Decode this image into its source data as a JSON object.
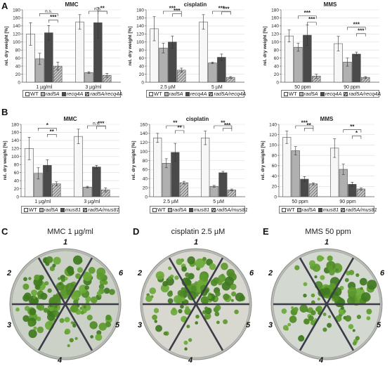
{
  "panel_letters": {
    "a": "A",
    "b": "B",
    "c": "C",
    "d": "D",
    "e": "E"
  },
  "legend_row1": {
    "wt": "WT",
    "rad5a": "rad5A",
    "mut": "recq4A",
    "dbl": "rad5A/recq4A"
  },
  "legend_row2": {
    "wt": "WT",
    "rad5a": "rad5A",
    "mut": "mus81",
    "dbl": "rad5A/mus81"
  },
  "photos": {
    "c_title": "MMC 1 µg/ml",
    "d_title": "cisplatin 2.5 µM",
    "e_title": "MMS 50 ppm",
    "labels": [
      "1",
      "2",
      "3",
      "4",
      "5",
      "6"
    ]
  },
  "colors": {
    "wt": "#f7f7f7",
    "rad5a": "#b0b0b0",
    "mut": "#4a4a4a",
    "dbl": "hatched",
    "plate_bg": "#d6d6d0",
    "seedling": "#5d9a2e"
  },
  "chart_data": [
    {
      "id": "A-MMC",
      "type": "bar",
      "title": "MMC",
      "ylabel": "rel. dry weight [%]",
      "ylim": [
        0,
        180
      ],
      "yticks": [
        0,
        20,
        40,
        60,
        80,
        100,
        120,
        140,
        160,
        180
      ],
      "categories": [
        "1 µg/ml",
        "3 µg/ml"
      ],
      "series": [
        {
          "name": "WT",
          "values": [
            120,
            150
          ],
          "err": [
            28,
            18
          ]
        },
        {
          "name": "rad5A",
          "values": [
            58,
            24
          ],
          "err": [
            14,
            2
          ]
        },
        {
          "name": "recq4A",
          "values": [
            123,
            148
          ],
          "err": [
            18,
            38
          ]
        },
        {
          "name": "rad5A/recq4A",
          "values": [
            40,
            17
          ],
          "err": [
            10,
            5
          ]
        }
      ],
      "annotations": [
        {
          "g": 0,
          "from": 1,
          "to": 3,
          "text": "n.s."
        },
        {
          "g": 0,
          "from": 2,
          "to": 3,
          "text": "***"
        },
        {
          "g": 1,
          "from": 1,
          "to": 3,
          "text": "n.s."
        },
        {
          "g": 1,
          "from": 2,
          "to": 3,
          "text": "**"
        }
      ]
    },
    {
      "id": "A-cisplatin",
      "type": "bar",
      "title": "cisplatin",
      "ylabel": "rel. dry weight [%]",
      "ylim": [
        0,
        180
      ],
      "yticks": [
        0,
        20,
        40,
        60,
        80,
        100,
        120,
        140,
        160,
        180
      ],
      "categories": [
        "2.5 µM",
        "5 µM"
      ],
      "series": [
        {
          "name": "WT",
          "values": [
            133,
            150
          ],
          "err": [
            30,
            18
          ]
        },
        {
          "name": "rad5A",
          "values": [
            85,
            48
          ],
          "err": [
            12,
            2
          ]
        },
        {
          "name": "recq4A",
          "values": [
            100,
            62
          ],
          "err": [
            15,
            8
          ]
        },
        {
          "name": "rad5A/recq4A",
          "values": [
            30,
            12
          ],
          "err": [
            5,
            2
          ]
        }
      ],
      "annotations": [
        {
          "g": 0,
          "from": 1,
          "to": 3,
          "text": "***"
        },
        {
          "g": 0,
          "from": 2,
          "to": 3,
          "text": "***"
        },
        {
          "g": 1,
          "from": 1,
          "to": 3,
          "text": "***"
        },
        {
          "g": 1,
          "from": 2,
          "to": 3,
          "text": "***"
        }
      ]
    },
    {
      "id": "A-MMS",
      "type": "bar",
      "title": "MMS",
      "ylabel": "rel. dry weight [%]",
      "ylim": [
        0,
        180
      ],
      "yticks": [
        0,
        20,
        40,
        60,
        80,
        100,
        120,
        140,
        160,
        180
      ],
      "categories": [
        "50 ppm",
        "90 ppm"
      ],
      "series": [
        {
          "name": "WT",
          "values": [
            115,
            96
          ],
          "err": [
            15,
            18
          ]
        },
        {
          "name": "rad5A",
          "values": [
            87,
            50
          ],
          "err": [
            10,
            10
          ]
        },
        {
          "name": "recq4A",
          "values": [
            117,
            70
          ],
          "err": [
            25,
            5
          ]
        },
        {
          "name": "rad5A/recq4A",
          "values": [
            15,
            12
          ],
          "err": [
            5,
            2
          ]
        }
      ],
      "annotations": [
        {
          "g": 0,
          "from": 1,
          "to": 3,
          "text": "***"
        },
        {
          "g": 0,
          "from": 2,
          "to": 3,
          "text": "***"
        },
        {
          "g": 1,
          "from": 1,
          "to": 3,
          "text": "***"
        },
        {
          "g": 1,
          "from": 2,
          "to": 3,
          "text": "***"
        }
      ]
    },
    {
      "id": "B-MMC",
      "type": "bar",
      "title": "MMC",
      "ylabel": "rel. dry weight [%]",
      "ylim": [
        0,
        180
      ],
      "yticks": [
        0,
        20,
        40,
        60,
        80,
        100,
        120,
        140,
        160,
        180
      ],
      "categories": [
        "1 µg/ml",
        "3 µg/ml"
      ],
      "series": [
        {
          "name": "WT",
          "values": [
            120,
            150
          ],
          "err": [
            28,
            18
          ]
        },
        {
          "name": "rad5A",
          "values": [
            58,
            24
          ],
          "err": [
            14,
            2
          ]
        },
        {
          "name": "mus81",
          "values": [
            78,
            74
          ],
          "err": [
            14,
            4
          ]
        },
        {
          "name": "rad5A/mus81",
          "values": [
            32,
            17
          ],
          "err": [
            5,
            5
          ]
        }
      ],
      "annotations": [
        {
          "g": 0,
          "from": 1,
          "to": 3,
          "text": "*"
        },
        {
          "g": 0,
          "from": 2,
          "to": 3,
          "text": "**"
        },
        {
          "g": 1,
          "from": 1,
          "to": 3,
          "text": "n.s."
        },
        {
          "g": 1,
          "from": 2,
          "to": 3,
          "text": "***"
        }
      ]
    },
    {
      "id": "B-cisplatin",
      "type": "bar",
      "title": "cisplatin",
      "ylabel": "rel. dry weight [%]",
      "ylim": [
        0,
        160
      ],
      "yticks": [
        0,
        20,
        40,
        60,
        80,
        100,
        120,
        140,
        160
      ],
      "categories": [
        "2.5 µM",
        "5 µM"
      ],
      "series": [
        {
          "name": "WT",
          "values": [
            130,
            130
          ],
          "err": [
            10,
            15
          ]
        },
        {
          "name": "rad5A",
          "values": [
            74,
            23
          ],
          "err": [
            10,
            2
          ]
        },
        {
          "name": "mus81",
          "values": [
            98,
            53
          ],
          "err": [
            20,
            3
          ]
        },
        {
          "name": "rad5A/mus81",
          "values": [
            31,
            15
          ],
          "err": [
            3,
            2
          ]
        }
      ],
      "annotations": [
        {
          "g": 0,
          "from": 1,
          "to": 3,
          "text": "**"
        },
        {
          "g": 0,
          "from": 2,
          "to": 3,
          "text": "**"
        },
        {
          "g": 1,
          "from": 1,
          "to": 3,
          "text": "**"
        },
        {
          "g": 1,
          "from": 2,
          "to": 3,
          "text": "***"
        }
      ]
    },
    {
      "id": "B-MMS",
      "type": "bar",
      "title": "MMS",
      "ylabel": "rel. dry weight [%]",
      "ylim": [
        0,
        140
      ],
      "yticks": [
        0,
        20,
        40,
        60,
        80,
        100,
        120,
        140
      ],
      "categories": [
        "50 ppm",
        "90 ppm"
      ],
      "series": [
        {
          "name": "WT",
          "values": [
            115,
            94
          ],
          "err": [
            12,
            18
          ]
        },
        {
          "name": "rad5A",
          "values": [
            89,
            53
          ],
          "err": [
            8,
            10
          ]
        },
        {
          "name": "mus81",
          "values": [
            34,
            24
          ],
          "err": [
            5,
            4
          ]
        },
        {
          "name": "rad5A/mus81",
          "values": [
            25,
            15
          ],
          "err": [
            2,
            2
          ]
        }
      ],
      "annotations": [
        {
          "g": 0,
          "from": 1,
          "to": 3,
          "text": "***"
        },
        {
          "g": 0,
          "from": 2,
          "to": 3,
          "text": "**"
        },
        {
          "g": 1,
          "from": 1,
          "to": 3,
          "text": "**"
        },
        {
          "g": 1,
          "from": 2,
          "to": 3,
          "text": "*"
        }
      ]
    }
  ]
}
